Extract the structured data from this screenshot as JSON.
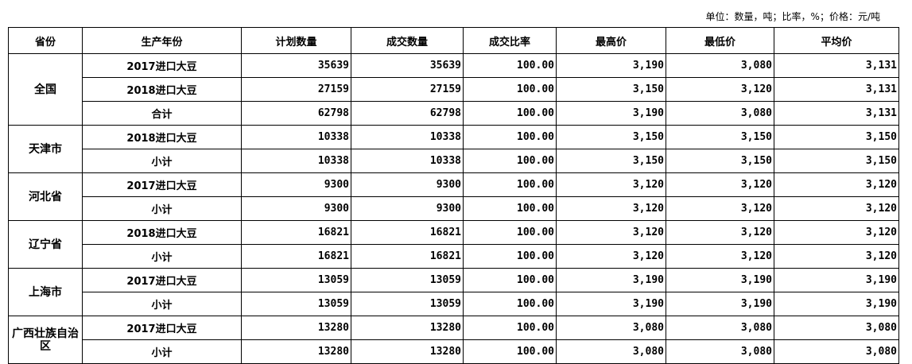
{
  "unit_note": "单位：数量，吨；比率，%；价格：元/吨",
  "headers": [
    "省份",
    "生产年份",
    "计划数量",
    "成交数量",
    "成交比率",
    "最高价",
    "最低价",
    "平均价"
  ],
  "groups": [
    {
      "province": "全国",
      "rows": [
        [
          "2017进口大豆",
          "35639",
          "35639",
          "100.00",
          "3,190",
          "3,080",
          "3,131"
        ],
        [
          "2018进口大豆",
          "27159",
          "27159",
          "100.00",
          "3,150",
          "3,120",
          "3,131"
        ],
        [
          "合计",
          "62798",
          "62798",
          "100.00",
          "3,190",
          "3,080",
          "3,131"
        ]
      ]
    },
    {
      "province": "天津市",
      "rows": [
        [
          "2018进口大豆",
          "10338",
          "10338",
          "100.00",
          "3,150",
          "3,150",
          "3,150"
        ],
        [
          "小计",
          "10338",
          "10338",
          "100.00",
          "3,150",
          "3,150",
          "3,150"
        ]
      ]
    },
    {
      "province": "河北省",
      "rows": [
        [
          "2017进口大豆",
          "9300",
          "9300",
          "100.00",
          "3,120",
          "3,120",
          "3,120"
        ],
        [
          "小计",
          "9300",
          "9300",
          "100.00",
          "3,120",
          "3,120",
          "3,120"
        ]
      ]
    },
    {
      "province": "辽宁省",
      "rows": [
        [
          "2018进口大豆",
          "16821",
          "16821",
          "100.00",
          "3,120",
          "3,120",
          "3,120"
        ],
        [
          "小计",
          "16821",
          "16821",
          "100.00",
          "3,120",
          "3,120",
          "3,120"
        ]
      ]
    },
    {
      "province": "上海市",
      "rows": [
        [
          "2017进口大豆",
          "13059",
          "13059",
          "100.00",
          "3,190",
          "3,190",
          "3,190"
        ],
        [
          "小计",
          "13059",
          "13059",
          "100.00",
          "3,190",
          "3,190",
          "3,190"
        ]
      ]
    },
    {
      "province": "广西壮族自治区",
      "rows": [
        [
          "2017进口大豆",
          "13280",
          "13280",
          "100.00",
          "3,080",
          "3,080",
          "3,080"
        ],
        [
          "小计",
          "13280",
          "13280",
          "100.00",
          "3,080",
          "3,080",
          "3,080"
        ]
      ]
    }
  ]
}
